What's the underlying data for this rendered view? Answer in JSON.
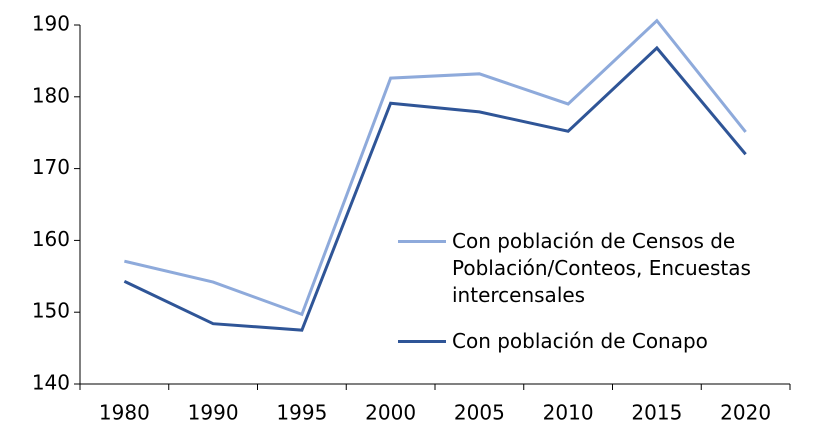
{
  "chart_data": {
    "type": "line",
    "categories": [
      "1980",
      "1990",
      "1995",
      "2000",
      "2005",
      "2010",
      "2015",
      "2020"
    ],
    "series": [
      {
        "name": "Con población de Censos de Población/Conteos, Encuestas intercensales",
        "color": "#8eaadb",
        "values": [
          157.1,
          154.2,
          149.7,
          182.6,
          183.2,
          179.0,
          190.6,
          175.1
        ]
      },
      {
        "name": "Con población de Conapo",
        "color": "#2f5597",
        "values": [
          154.3,
          148.4,
          147.5,
          179.1,
          177.9,
          175.2,
          186.8,
          172.0
        ]
      }
    ],
    "ylim": [
      140,
      190
    ],
    "yticks": [
      140,
      150,
      160,
      170,
      180,
      190
    ]
  }
}
